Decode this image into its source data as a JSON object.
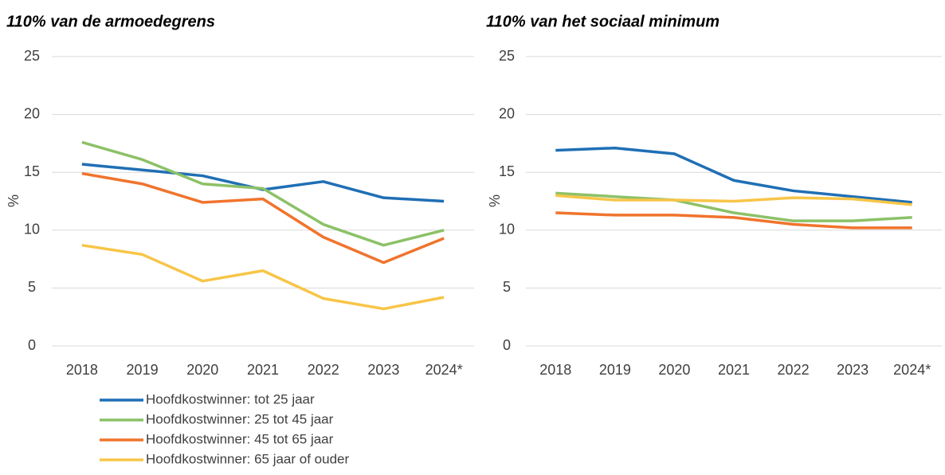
{
  "chart_data": [
    {
      "type": "line",
      "title": "110% van de armoedegrens",
      "y_label": "%",
      "categories": [
        "2018",
        "2019",
        "2020",
        "2021",
        "2022",
        "2023",
        "2024*"
      ],
      "ylim": [
        0,
        25
      ],
      "yticks": [
        0,
        5,
        10,
        15,
        20,
        25
      ],
      "grid": true,
      "legend": "bottom",
      "series": [
        {
          "name": "Hoofdkostwinner: tot 25 jaar",
          "color": "#1f6fb5",
          "values": [
            15.7,
            15.2,
            14.7,
            13.5,
            14.2,
            12.8,
            12.5
          ]
        },
        {
          "name": "Hoofdkostwinner: 25 tot 45 jaar",
          "color": "#8cc168",
          "values": [
            17.6,
            16.1,
            14.0,
            13.6,
            10.5,
            8.7,
            10.0
          ]
        },
        {
          "name": "Hoofdkostwinner: 45 tot 65 jaar",
          "color": "#f0742d",
          "values": [
            14.9,
            14.0,
            12.4,
            12.7,
            9.4,
            7.2,
            9.3
          ]
        },
        {
          "name": "Hoofdkostwinner: 65 jaar of ouder",
          "color": "#f7c548",
          "values": [
            8.7,
            7.9,
            5.6,
            6.5,
            4.1,
            3.2,
            4.2
          ]
        }
      ]
    },
    {
      "type": "line",
      "title": "110% van het sociaal minimum",
      "y_label": "%",
      "categories": [
        "2018",
        "2019",
        "2020",
        "2021",
        "2022",
        "2023",
        "2024*"
      ],
      "ylim": [
        0,
        25
      ],
      "yticks": [
        0,
        5,
        10,
        15,
        20,
        25
      ],
      "grid": true,
      "series": [
        {
          "color": "#1f6fb5",
          "values": [
            16.9,
            17.1,
            16.6,
            14.3,
            13.4,
            12.9,
            12.4
          ]
        },
        {
          "color": "#8cc168",
          "values": [
            13.2,
            12.9,
            12.6,
            11.5,
            10.8,
            10.8,
            11.1
          ]
        },
        {
          "color": "#f0742d",
          "values": [
            11.5,
            11.3,
            11.3,
            11.1,
            10.5,
            10.2,
            10.2
          ]
        },
        {
          "color": "#f7c548",
          "values": [
            13.0,
            12.6,
            12.6,
            12.5,
            12.8,
            12.7,
            12.2
          ]
        }
      ]
    }
  ]
}
